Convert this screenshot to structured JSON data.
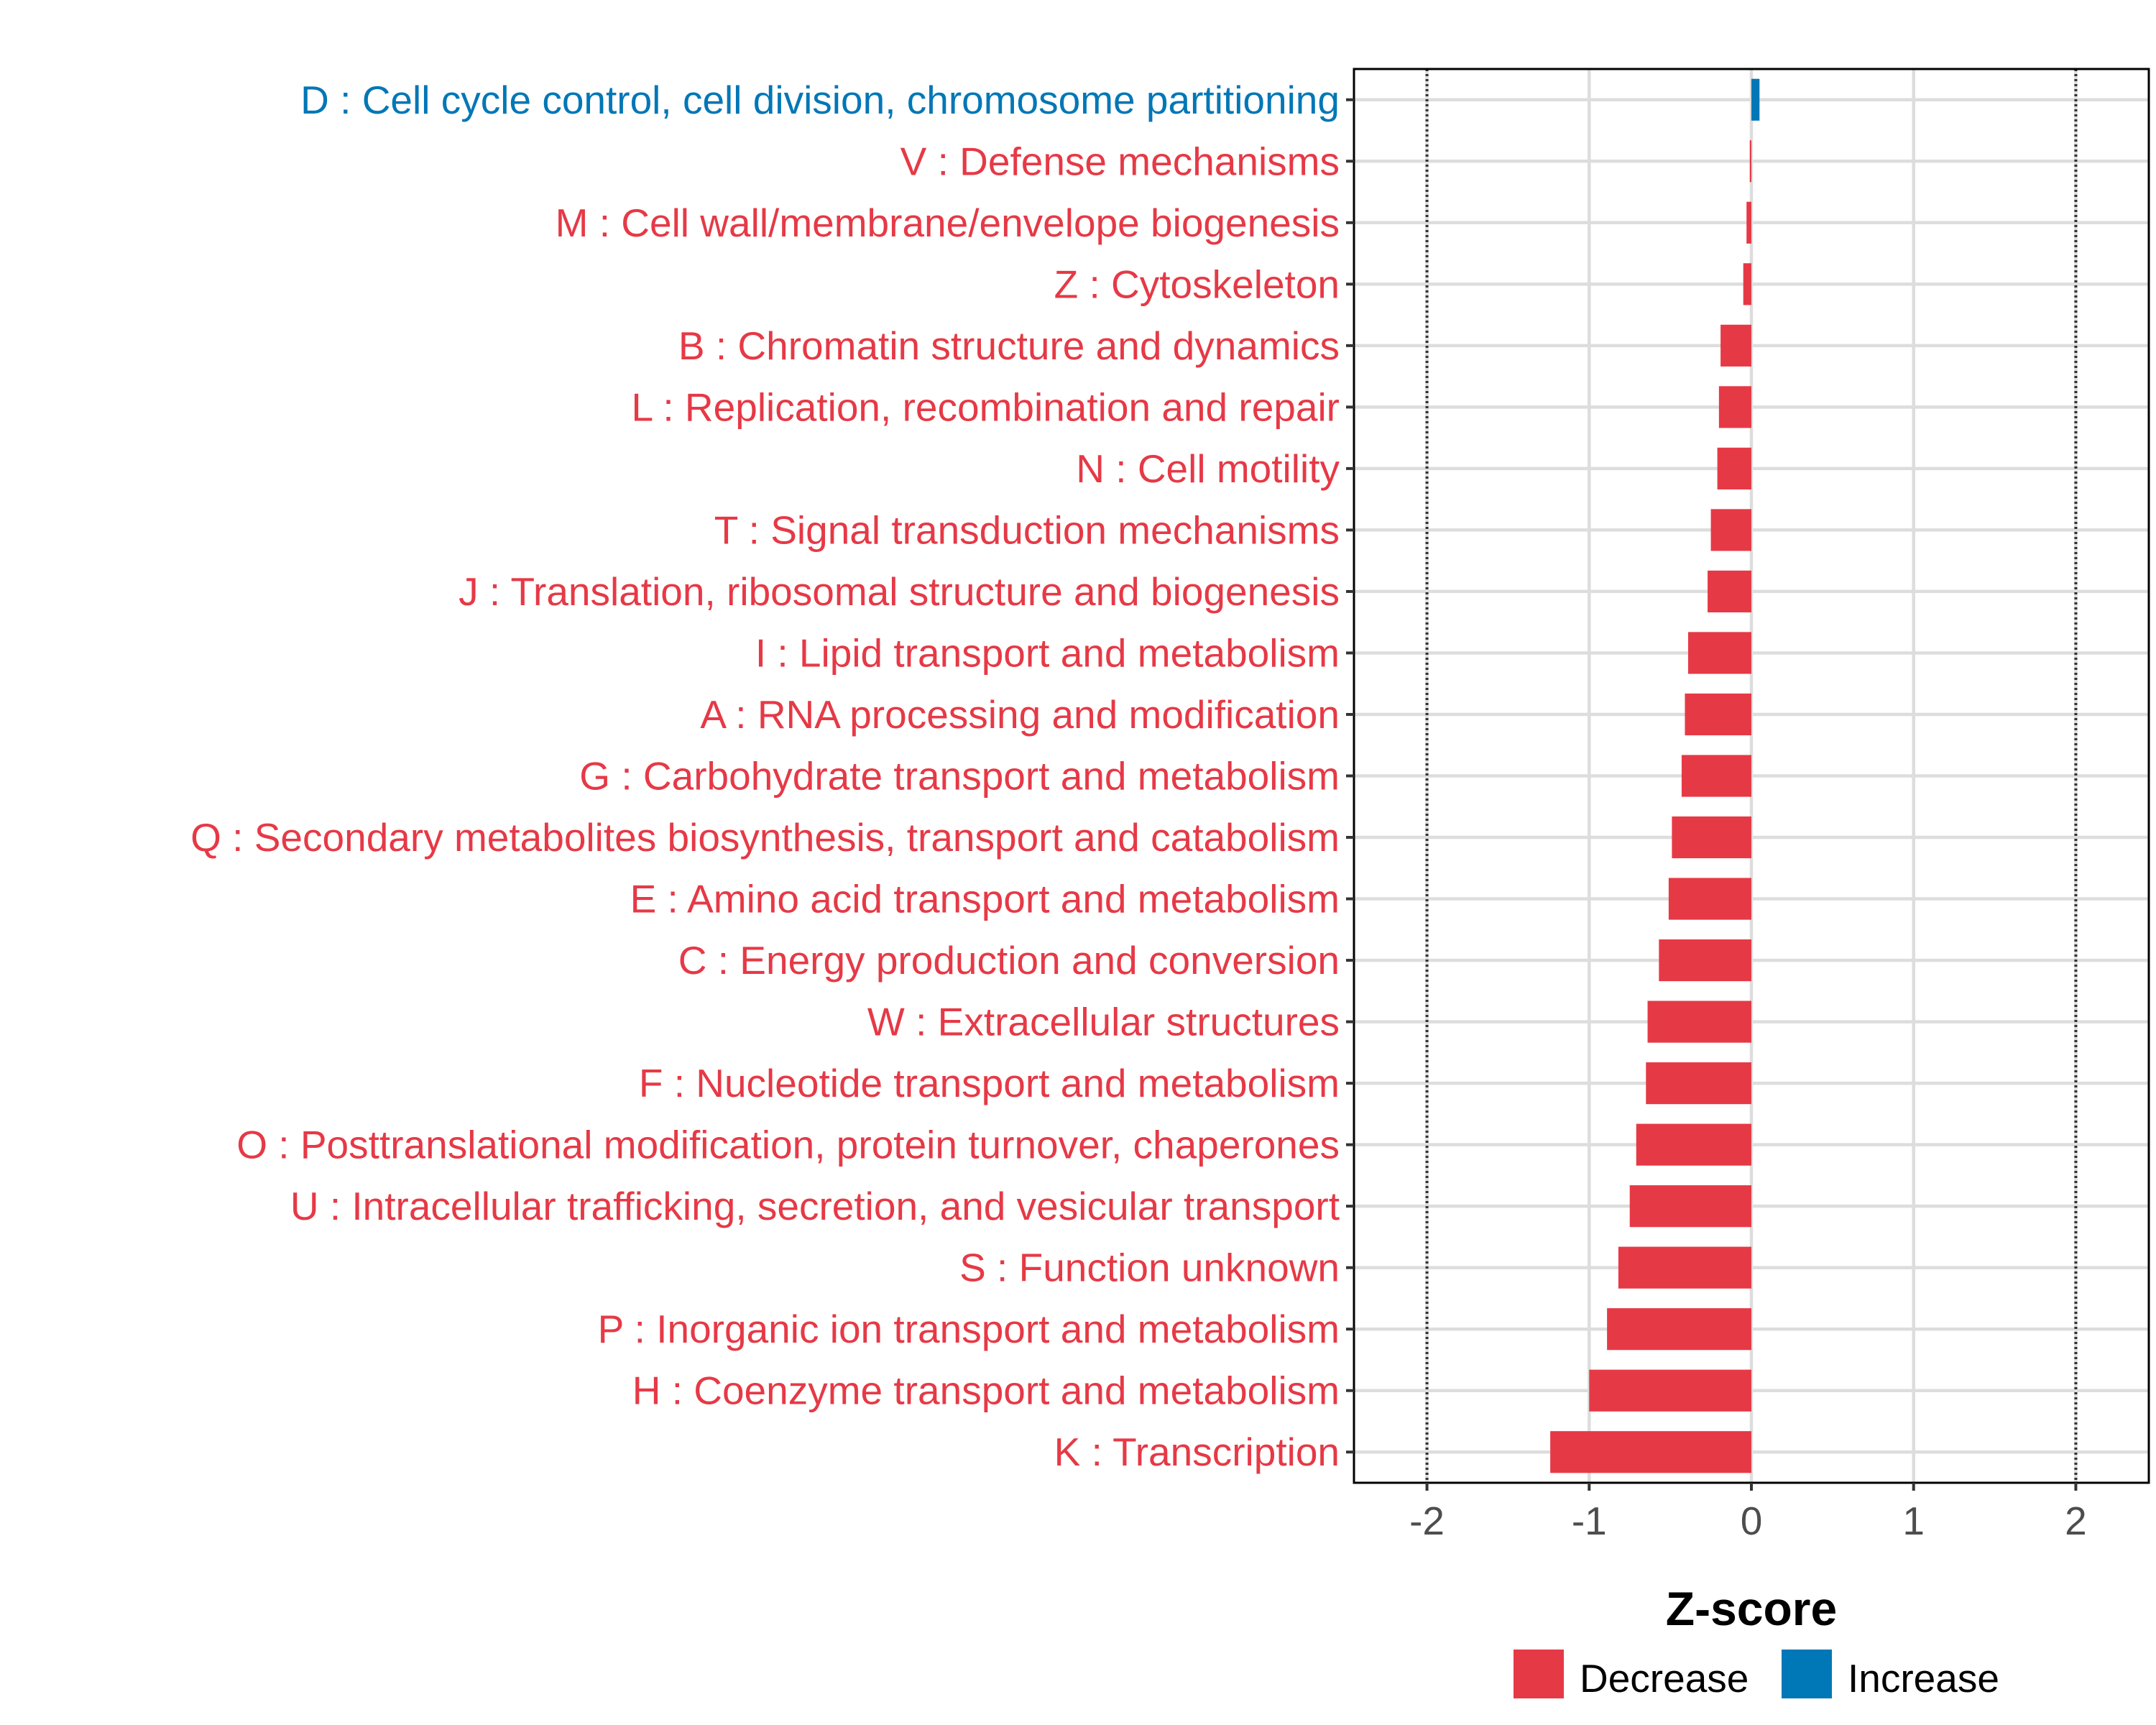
{
  "chart_data": {
    "type": "bar",
    "orientation": "horizontal",
    "xlabel": "Z-score",
    "ylabel": "",
    "xlim": [
      -2.45,
      2.45
    ],
    "x_ticks": [
      -2,
      -1,
      0,
      1,
      2
    ],
    "x_tick_labels": [
      "-2",
      "-1",
      "0",
      "1",
      "2"
    ],
    "reference_lines": [
      -2,
      2
    ],
    "grid": true,
    "legend_position": "bottom",
    "colors": {
      "Decrease": "#E63946",
      "Increase": "#0077B6"
    },
    "categories": [
      "D : Cell cycle control, cell division, chromosome partitioning",
      "V : Defense mechanisms",
      "M : Cell wall/membrane/envelope biogenesis",
      "Z : Cytoskeleton",
      "B : Chromatin structure and dynamics",
      "L : Replication, recombination and repair",
      "N : Cell motility",
      "T : Signal transduction mechanisms",
      "J : Translation, ribosomal structure and biogenesis",
      "I : Lipid transport and metabolism",
      "A : RNA processing and modification",
      "G : Carbohydrate transport and metabolism",
      "Q : Secondary metabolites biosynthesis, transport and catabolism",
      "E : Amino acid transport and metabolism",
      "C : Energy production and conversion",
      "W : Extracellular structures",
      "F : Nucleotide transport and metabolism",
      "O : Posttranslational modification, protein turnover, chaperones",
      "U : Intracellular trafficking, secretion, and vesicular transport",
      "S : Function unknown",
      "P : Inorganic ion transport and metabolism",
      "H : Coenzyme transport and metabolism",
      "K : Transcription"
    ],
    "values": [
      0.05,
      -0.01,
      -0.03,
      -0.05,
      -0.19,
      -0.2,
      -0.21,
      -0.25,
      -0.27,
      -0.39,
      -0.41,
      -0.43,
      -0.49,
      -0.51,
      -0.57,
      -0.64,
      -0.65,
      -0.71,
      -0.75,
      -0.82,
      -0.89,
      -1.0,
      -1.24
    ],
    "directions": [
      "Increase",
      "Decrease",
      "Decrease",
      "Decrease",
      "Decrease",
      "Decrease",
      "Decrease",
      "Decrease",
      "Decrease",
      "Decrease",
      "Decrease",
      "Decrease",
      "Decrease",
      "Decrease",
      "Decrease",
      "Decrease",
      "Decrease",
      "Decrease",
      "Decrease",
      "Decrease",
      "Decrease",
      "Decrease",
      "Decrease"
    ],
    "legend": [
      {
        "label": "Decrease",
        "color": "#E63946"
      },
      {
        "label": "Increase",
        "color": "#0077B6"
      }
    ]
  }
}
